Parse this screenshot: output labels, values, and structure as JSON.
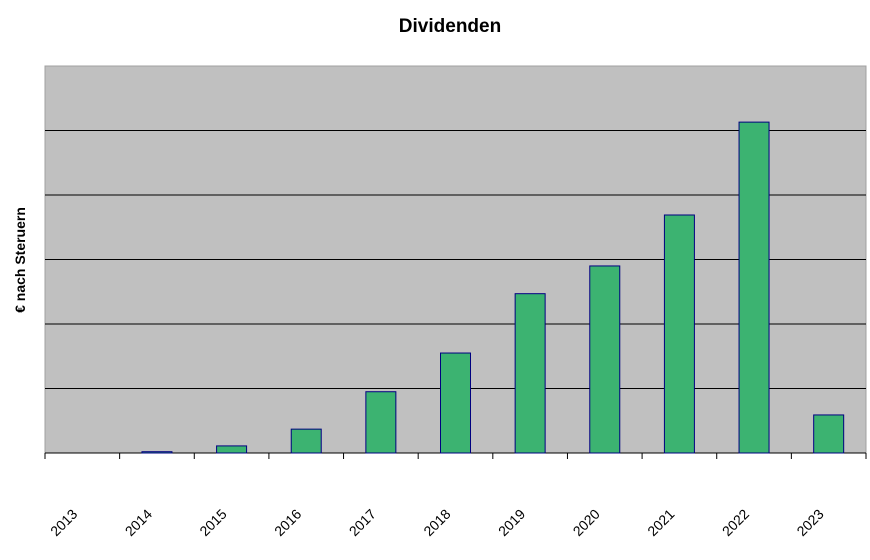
{
  "chart_data": {
    "type": "bar",
    "title": "Dividenden",
    "xlabel": "",
    "ylabel": "€ nach Steruern",
    "categories": [
      "2013",
      "2014",
      "2015",
      "2016",
      "2017",
      "2018",
      "2019",
      "2020",
      "2021",
      "2022",
      "2023"
    ],
    "values": [
      0,
      0.02,
      0.11,
      0.37,
      0.95,
      1.55,
      2.47,
      2.9,
      3.69,
      5.13,
      0.59
    ],
    "ylim": [
      0,
      6
    ],
    "y_tick_labels_shown": false,
    "grid": true,
    "legend": "none",
    "colors": {
      "bar": "#3cb371",
      "bar_edge": "#000080",
      "plot_bg": "#c0c0c0",
      "grid": "#000000"
    }
  }
}
